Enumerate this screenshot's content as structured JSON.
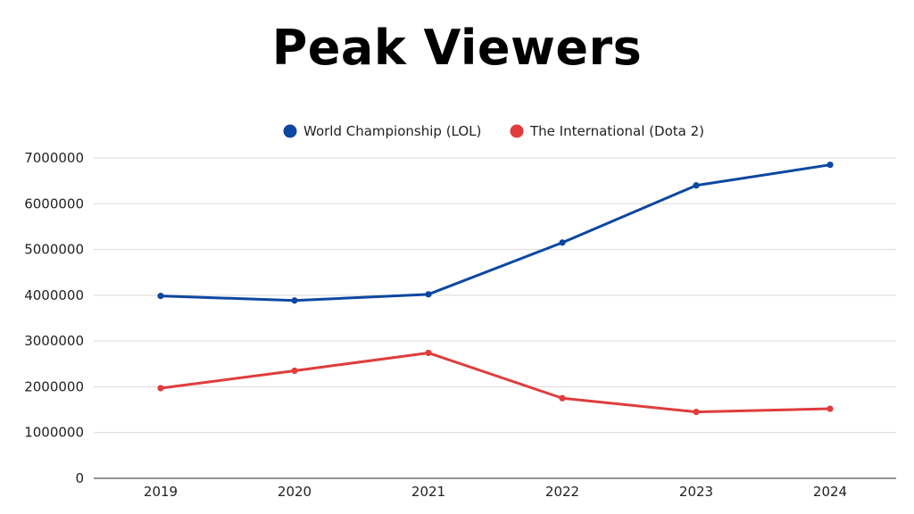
{
  "chart_data": {
    "type": "line",
    "title": "Peak Viewers",
    "xlabel": "",
    "ylabel": "",
    "categories": [
      "2019",
      "2020",
      "2021",
      "2022",
      "2023",
      "2024"
    ],
    "ylim": [
      0,
      7000000
    ],
    "yticks": [
      0,
      1000000,
      2000000,
      3000000,
      4000000,
      5000000,
      6000000,
      7000000
    ],
    "grid": true,
    "legend_position": "top-center",
    "series": [
      {
        "name": "World Championship (LOL)",
        "color": "#0d47a1",
        "values": [
          3985000,
          3885000,
          4020000,
          5150000,
          6400000,
          6850000
        ]
      },
      {
        "name": "The International (Dota 2)",
        "color": "#e03c3c",
        "values": [
          1970000,
          2350000,
          2740000,
          1750000,
          1450000,
          1520000
        ]
      }
    ]
  }
}
